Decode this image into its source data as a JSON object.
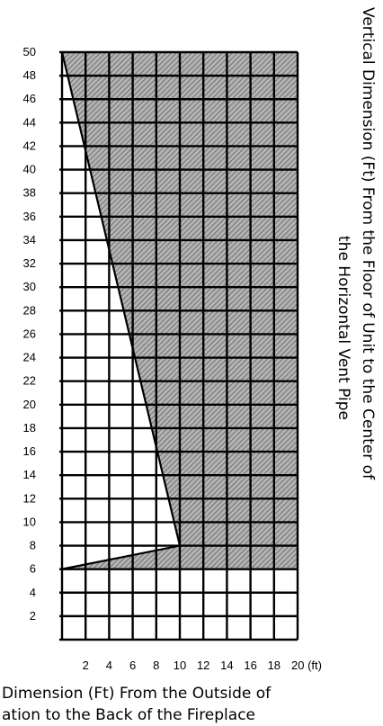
{
  "chart_data": {
    "type": "area",
    "description_axes": "x = horizontal dimension in ft, y = vertical dimension in ft",
    "x_ticks": [
      "2",
      "4",
      "6",
      "8",
      "10",
      "12",
      "14",
      "16",
      "18",
      "20 (ft)"
    ],
    "y_ticks": [
      "2",
      "4",
      "6",
      "8",
      "10",
      "12",
      "14",
      "16",
      "18",
      "20",
      "22",
      "24",
      "26",
      "28",
      "30",
      "32",
      "34",
      "36",
      "38",
      "40",
      "42",
      "44",
      "46",
      "48",
      "50"
    ],
    "xlim": [
      0,
      20
    ],
    "ylim": [
      0,
      50
    ],
    "grid": true,
    "boundary": {
      "x": [
        0,
        10,
        10,
        0
      ],
      "y": [
        50,
        8,
        8,
        6
      ]
    },
    "shaded_region": {
      "x": [
        0,
        20,
        20,
        0,
        10
      ],
      "y": [
        50,
        50,
        6,
        6,
        8
      ]
    },
    "shading_colors": {
      "fill": "#b4b4b4",
      "hatch": "#555555"
    },
    "ylabel_lines": [
      "Vertical Dimension (Ft) From the Floor of Unit to the Center of",
      "the Horizontal Vent Pipe"
    ],
    "xlabel_lines": [
      "Dimension (Ft) From the Outside of",
      "ation to the Back of the Fireplace"
    ]
  }
}
